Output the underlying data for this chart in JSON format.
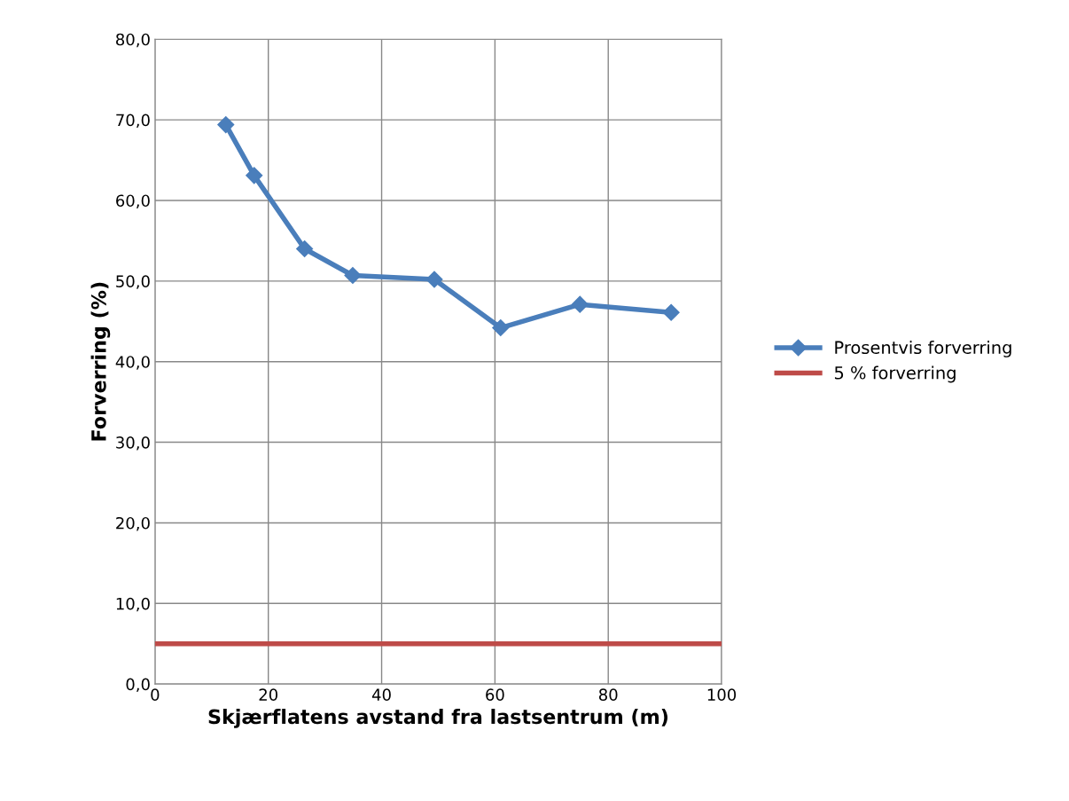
{
  "chart_data": {
    "type": "line",
    "xlabel": "Skjærflatens avstand fra lastsentrum (m)",
    "ylabel": "Forverring (%)",
    "xlim": [
      0,
      100
    ],
    "xticks": [
      0,
      20,
      40,
      60,
      80,
      100
    ],
    "ylim": [
      0,
      80
    ],
    "yticks": [
      {
        "value": 0,
        "label": "0,0"
      },
      {
        "value": 10,
        "label": "10,0"
      },
      {
        "value": 20,
        "label": "20,0"
      },
      {
        "value": 30,
        "label": "30,0"
      },
      {
        "value": 40,
        "label": "40,0"
      },
      {
        "value": 50,
        "label": "50,0"
      },
      {
        "value": 60,
        "label": "60,0"
      },
      {
        "value": 70,
        "label": "70,0"
      },
      {
        "value": 80,
        "label": "80,0"
      }
    ],
    "grid": true,
    "legend": "right",
    "series": [
      {
        "name": "Prosentvis forverring",
        "color": "#4a7ebb",
        "marker": "diamond",
        "x": [
          12.5,
          17.5,
          26.4,
          34.9,
          49.3,
          61.0,
          75.0,
          91.1
        ],
        "values": [
          69.4,
          63.1,
          54.0,
          50.7,
          50.2,
          44.2,
          47.1,
          46.1
        ]
      },
      {
        "name": "5 % forverring",
        "color": "#be4b48",
        "marker": "none",
        "x": [
          0,
          100
        ],
        "values": [
          5,
          5
        ]
      }
    ]
  }
}
